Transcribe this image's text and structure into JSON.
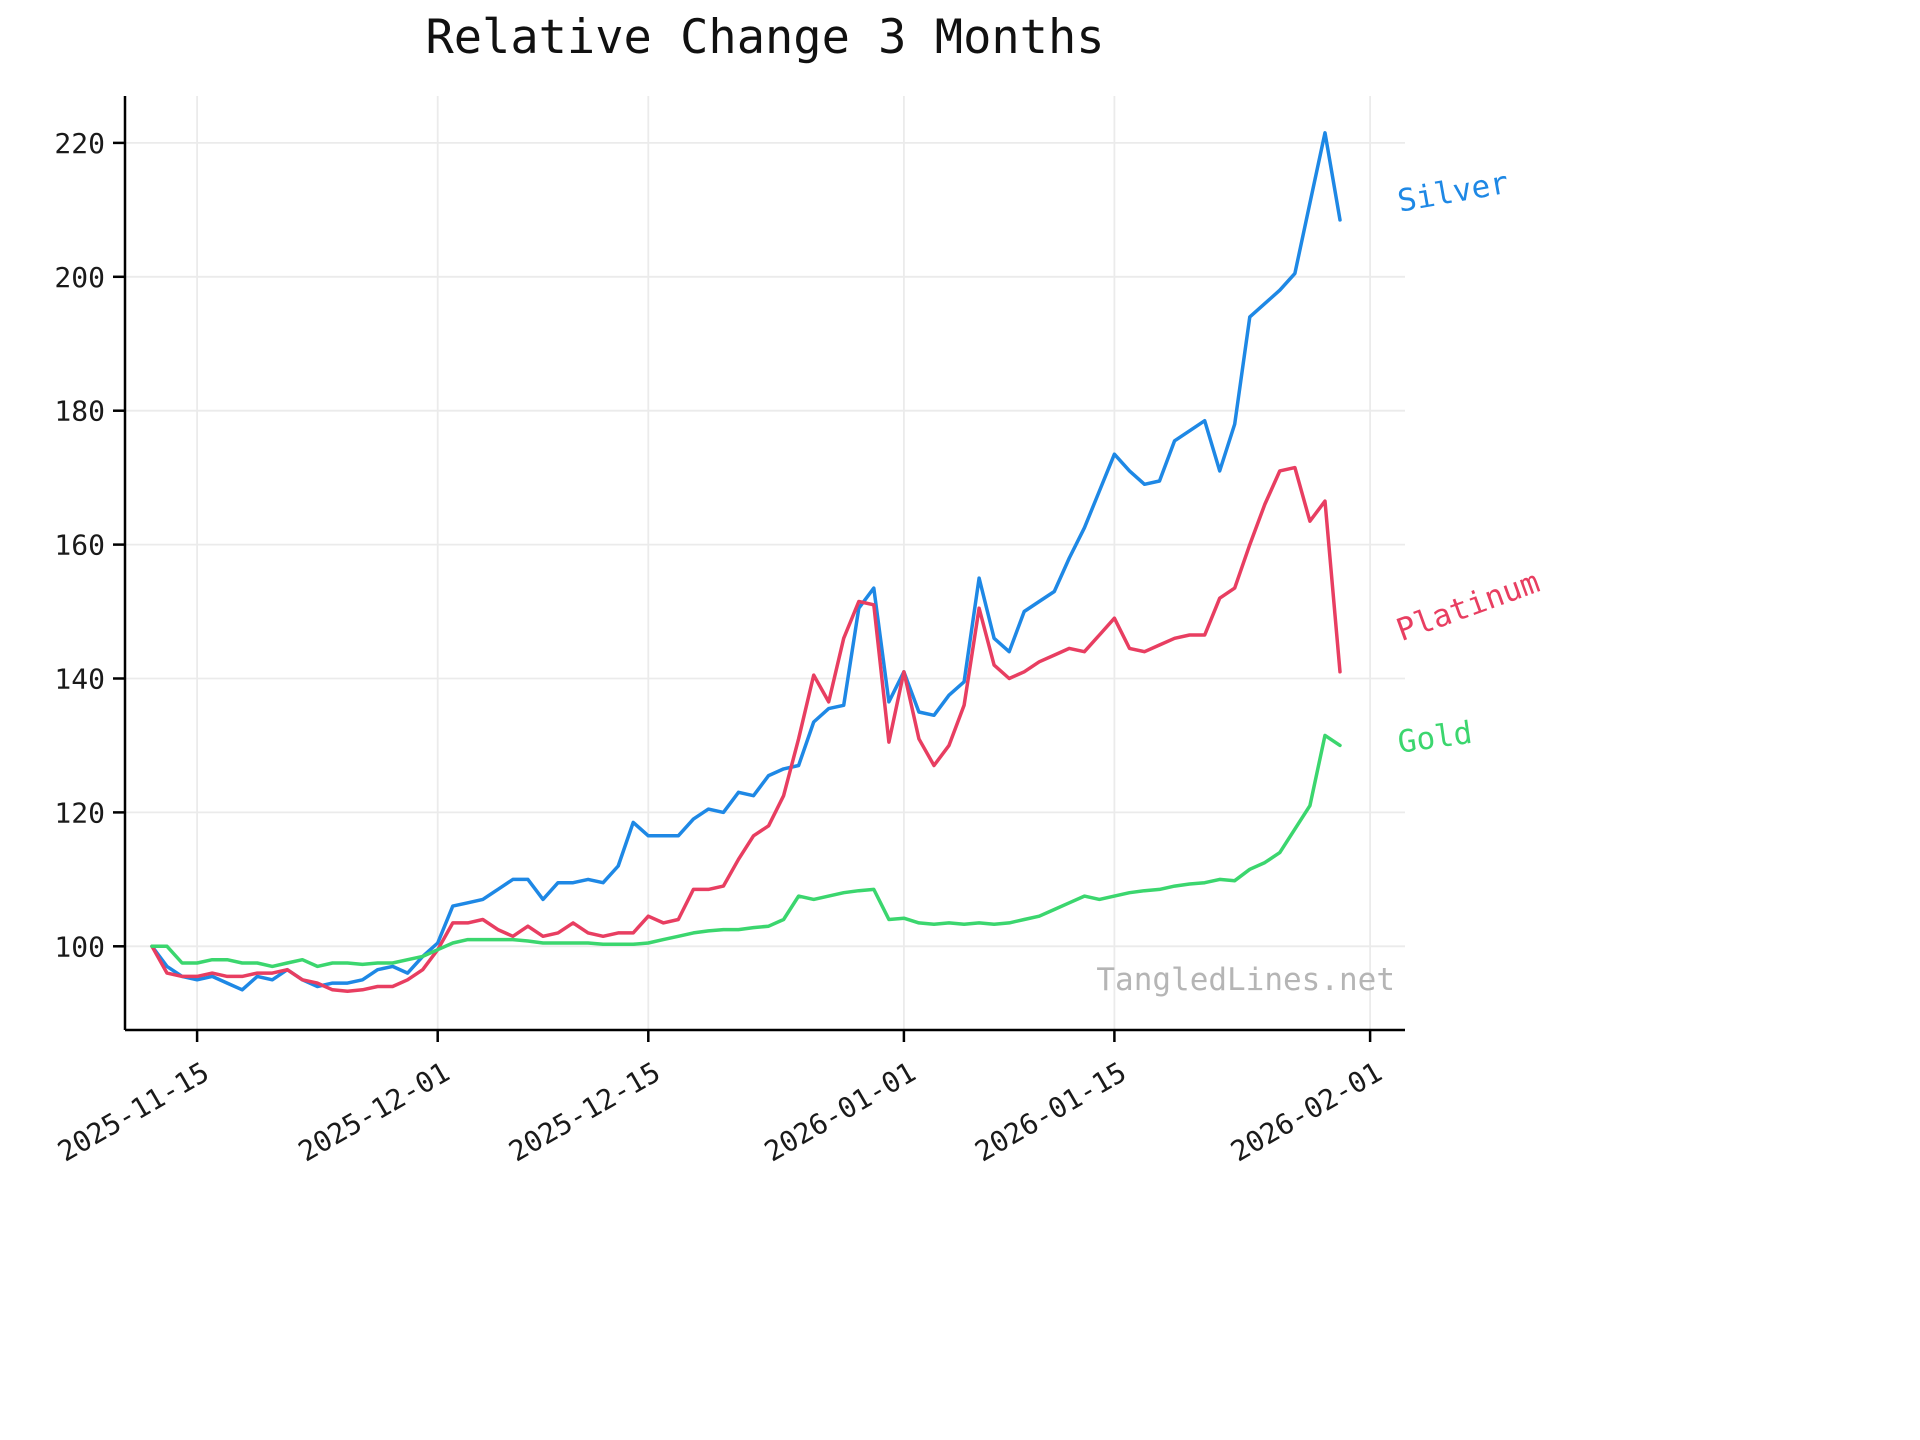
{
  "page": {
    "title": "Relative Change 3 Months",
    "watermark": "TangledLines.net"
  },
  "chart_data": {
    "type": "line",
    "title": "Relative Change 3 Months",
    "xlabel": "",
    "ylabel": "",
    "grid": true,
    "legend_position": "right-end-inline-labels",
    "ylim": [
      87.5,
      227
    ],
    "yticks": [
      100,
      120,
      140,
      160,
      180,
      200,
      220
    ],
    "xticks": [
      "2025-11-15",
      "2025-12-01",
      "2025-12-15",
      "2026-01-01",
      "2026-01-15",
      "2026-02-01"
    ],
    "x": [
      "2025-11-12",
      "2025-11-13",
      "2025-11-14",
      "2025-11-15",
      "2025-11-16",
      "2025-11-17",
      "2025-11-18",
      "2025-11-19",
      "2025-11-20",
      "2025-11-21",
      "2025-11-22",
      "2025-11-23",
      "2025-11-24",
      "2025-11-25",
      "2025-11-26",
      "2025-11-27",
      "2025-11-28",
      "2025-11-29",
      "2025-11-30",
      "2025-12-01",
      "2025-12-02",
      "2025-12-03",
      "2025-12-04",
      "2025-12-05",
      "2025-12-06",
      "2025-12-07",
      "2025-12-08",
      "2025-12-09",
      "2025-12-10",
      "2025-12-11",
      "2025-12-12",
      "2025-12-13",
      "2025-12-14",
      "2025-12-15",
      "2025-12-16",
      "2025-12-17",
      "2025-12-18",
      "2025-12-19",
      "2025-12-20",
      "2025-12-21",
      "2025-12-22",
      "2025-12-23",
      "2025-12-24",
      "2025-12-25",
      "2025-12-26",
      "2025-12-27",
      "2025-12-28",
      "2025-12-29",
      "2025-12-30",
      "2025-12-31",
      "2026-01-01",
      "2026-01-02",
      "2026-01-03",
      "2026-01-04",
      "2026-01-05",
      "2026-01-06",
      "2026-01-07",
      "2026-01-08",
      "2026-01-09",
      "2026-01-10",
      "2026-01-11",
      "2026-01-12",
      "2026-01-13",
      "2026-01-14",
      "2026-01-15",
      "2026-01-16",
      "2026-01-17",
      "2026-01-18",
      "2026-01-19",
      "2026-01-20",
      "2026-01-21",
      "2026-01-22",
      "2026-01-23",
      "2026-01-24",
      "2026-01-25",
      "2026-01-26",
      "2026-01-27",
      "2026-01-28",
      "2026-01-29",
      "2026-01-30"
    ],
    "series": [
      {
        "name": "Silver",
        "color": "#1e88e5",
        "values": [
          100,
          97,
          95.5,
          95,
          95.5,
          94.5,
          93.5,
          95.5,
          95,
          96.5,
          95,
          94,
          94.5,
          94.5,
          95,
          96.5,
          97,
          96,
          98.5,
          100.5,
          106,
          106.5,
          107,
          108.5,
          110,
          110,
          107,
          109.5,
          109.5,
          110,
          109.5,
          112,
          118.5,
          116.5,
          116.5,
          116.5,
          119,
          120.5,
          120,
          123,
          122.5,
          125.5,
          126.5,
          127,
          133.5,
          135.5,
          136,
          150.5,
          153.5,
          136.5,
          141,
          135,
          134.5,
          137.5,
          139.5,
          155,
          146,
          144,
          150,
          151.5,
          153,
          158,
          162.5,
          168,
          173.5,
          171,
          169,
          169.5,
          175.5,
          177,
          178.5,
          171,
          178,
          194,
          196,
          198,
          200.5,
          211,
          221.5,
          208.5
        ]
      },
      {
        "name": "Platinum",
        "color": "#e83e61",
        "values": [
          100,
          96,
          95.5,
          95.5,
          96,
          95.5,
          95.5,
          96,
          96,
          96.5,
          95,
          94.5,
          93.5,
          93.3,
          93.5,
          94,
          94,
          95,
          96.5,
          99.5,
          103.5,
          103.5,
          104,
          102.5,
          101.5,
          103,
          101.5,
          102,
          103.5,
          102,
          101.5,
          102,
          102,
          104.5,
          103.5,
          104,
          108.5,
          108.5,
          109,
          113,
          116.5,
          118,
          122.5,
          131,
          140.5,
          136.5,
          146,
          151.5,
          151,
          130.5,
          141,
          131,
          127,
          130,
          136,
          150.5,
          142,
          140,
          141,
          142.5,
          143.5,
          144.5,
          144,
          146.5,
          149,
          144.5,
          144,
          145,
          146,
          146.5,
          146.5,
          152,
          153.5,
          160,
          166,
          171,
          171.5,
          163.5,
          166.5,
          141
        ]
      },
      {
        "name": "Gold",
        "color": "#3bd66e",
        "values": [
          100,
          100,
          97.5,
          97.5,
          98,
          98,
          97.5,
          97.5,
          97,
          97.5,
          98,
          97,
          97.5,
          97.5,
          97.3,
          97.5,
          97.5,
          98,
          98.5,
          99.5,
          100.5,
          101,
          101,
          101,
          101,
          100.8,
          100.5,
          100.5,
          100.5,
          100.5,
          100.3,
          100.3,
          100.3,
          100.5,
          101,
          101.5,
          102,
          102.3,
          102.5,
          102.5,
          102.8,
          103,
          104,
          107.5,
          107,
          107.5,
          108,
          108.3,
          108.5,
          104,
          104.2,
          103.5,
          103.3,
          103.5,
          103.3,
          103.5,
          103.3,
          103.5,
          104,
          104.5,
          105.5,
          106.5,
          107.5,
          107,
          107.5,
          108,
          108.3,
          108.5,
          109,
          109.3,
          109.5,
          110,
          109.8,
          111.5,
          112.5,
          114,
          117.5,
          121,
          131.5,
          130
        ]
      }
    ]
  }
}
